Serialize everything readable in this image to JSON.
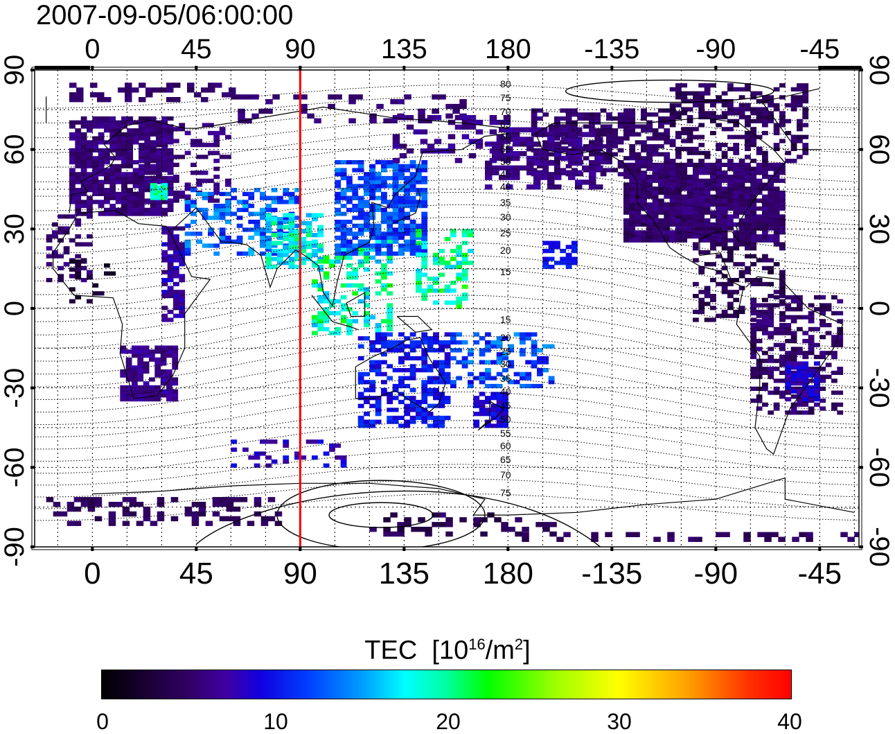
{
  "title": "2007-09-05/06:00:00",
  "map": {
    "lon_ticks": [
      "0",
      "45",
      "90",
      "135",
      "180",
      "-135",
      "-90",
      "-45"
    ],
    "lat_ticks": [
      "90",
      "60",
      "30",
      "0",
      "-30",
      "-60",
      "-90"
    ],
    "marker_longitude": 90,
    "marker_color": "#ff0000",
    "north_contour_labels": [
      "80",
      "75",
      "70",
      "65",
      "60",
      "55",
      "50",
      "45",
      "40",
      "35",
      "30",
      "25",
      "20",
      "15"
    ],
    "south_contour_labels": [
      "15",
      "20",
      "25",
      "30",
      "35",
      "40",
      "45",
      "50",
      "55",
      "60",
      "65",
      "70",
      "75"
    ]
  },
  "colorbar": {
    "label": "TEC",
    "unit_base": "[10",
    "unit_exp": "16",
    "unit_mid": "/m",
    "unit_exp2": "2",
    "unit_end": "]",
    "ticks": [
      "0",
      "10",
      "20",
      "30",
      "40"
    ],
    "range": [
      0,
      40
    ]
  }
}
